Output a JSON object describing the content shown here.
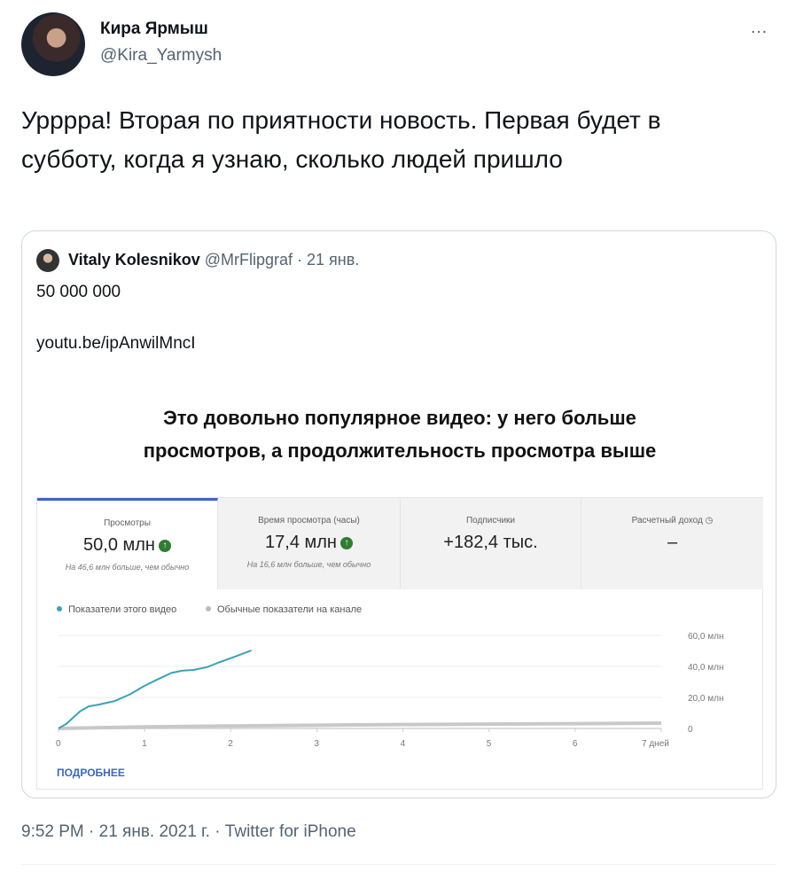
{
  "tweet": {
    "author_name": "Кира Ярмыш",
    "author_handle": "@Kira_Yarmysh",
    "more_icon": "…",
    "text": "Урррра! Вторая по приятности новость. Первая будет в субботу, когда я узнаю, сколько людей пришло",
    "footer": "9:52 PM · 21 янв. 2021 г. · Twitter for iPhone"
  },
  "quote": {
    "author_name": "Vitaly Kolesnikov",
    "meta": "@MrFlipgraf · 21 янв.",
    "text": "50 000 000",
    "link": "youtu.be/ipAnwilMncI",
    "image": {
      "heading_line1": "Это довольно популярное видео: у него больше",
      "heading_line2": "просмотров, а продолжительность просмотра выше",
      "tabs": [
        {
          "label": "Просмотры",
          "value": "50,0 млн",
          "up": true,
          "sub": "На 46,6 млн больше, чем обычно"
        },
        {
          "label": "Время просмотра (часы)",
          "value": "17,4 млн",
          "up": true,
          "sub": "На 16,6 млн больше, чем обычно"
        },
        {
          "label": "Подписчики",
          "value": "+182,4 тыс.",
          "sub": ""
        },
        {
          "label": "Расчетный доход",
          "value": "–",
          "sub": ""
        }
      ],
      "more_label": "ПОДРОБНЕЕ"
    }
  },
  "chart_data": {
    "type": "line",
    "x_ticks": [
      "0",
      "1",
      "2",
      "3",
      "4",
      "5",
      "6",
      "7 дней"
    ],
    "y_ticks": [
      "0",
      "20,0 млн",
      "40,0 млн",
      "60,0 млн"
    ],
    "xlim": [
      0,
      7
    ],
    "ylim": [
      0,
      60000000
    ],
    "grid": true,
    "legend": "top-left",
    "series": [
      {
        "name": "Показатели этого видео",
        "color": "#3ca1b8",
        "x": [
          0,
          0.09,
          0.25,
          0.35,
          0.46,
          0.65,
          0.83,
          0.99,
          1.15,
          1.31,
          1.44,
          1.57,
          1.73,
          1.86,
          2.02,
          2.24
        ],
        "y": [
          0,
          2900000,
          11000000,
          14200000,
          15300000,
          17600000,
          22000000,
          27200000,
          31600000,
          35800000,
          37300000,
          37700000,
          39600000,
          42500000,
          45700000,
          50300000
        ]
      },
      {
        "name": "Обычные показатели на канале",
        "color": "#c8c8c8",
        "x": [
          0,
          1,
          2,
          3,
          4,
          5,
          6,
          7
        ],
        "y": [
          0,
          1000000,
          1600000,
          2100000,
          2500000,
          2800000,
          3100000,
          3400000
        ]
      }
    ]
  }
}
